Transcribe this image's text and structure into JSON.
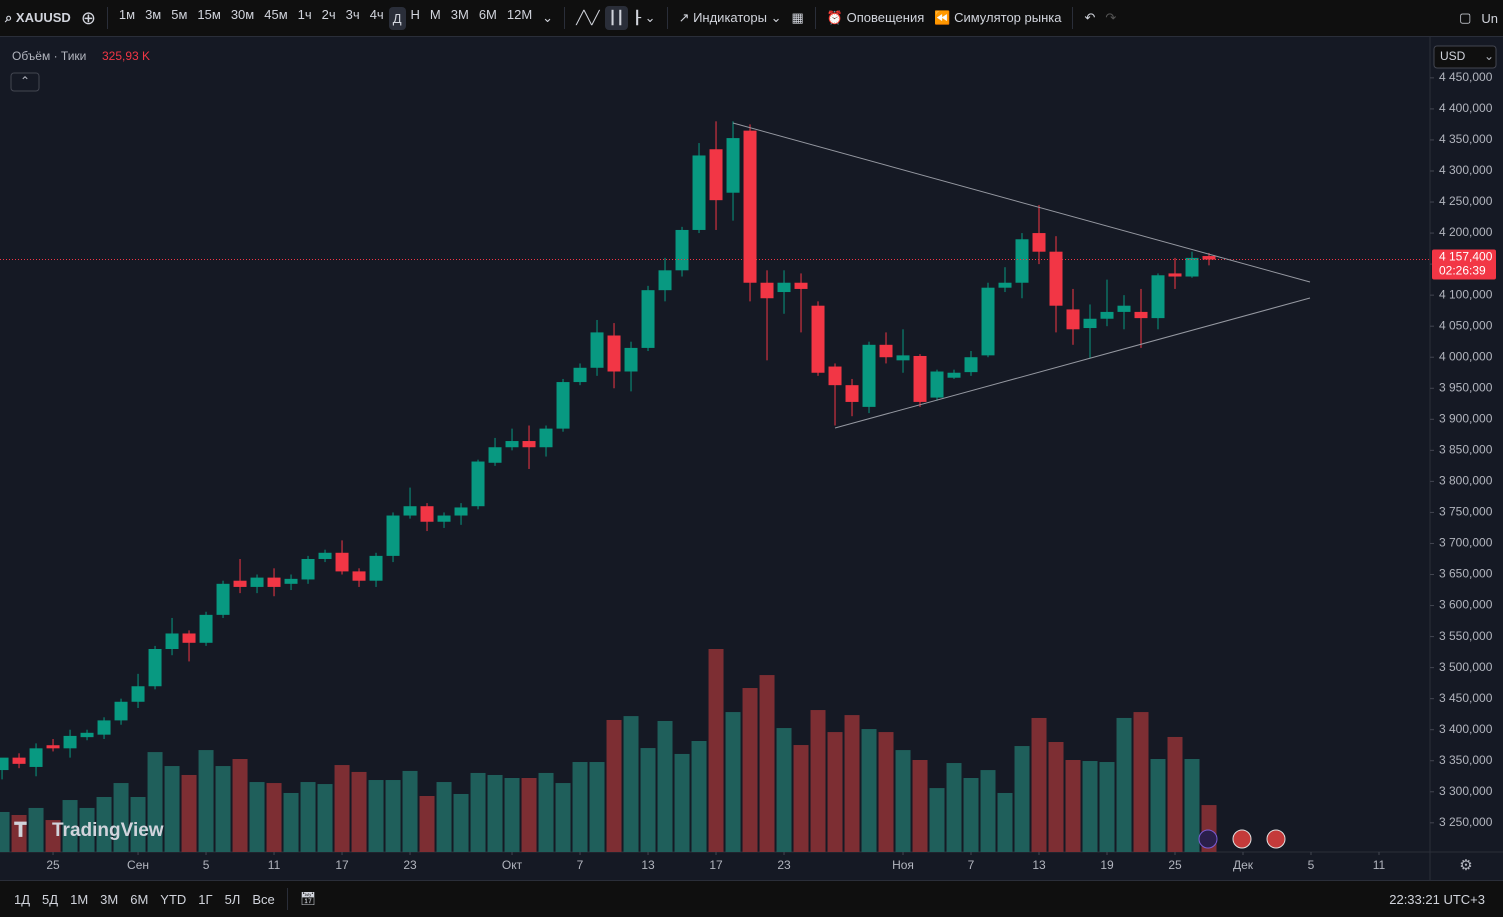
{
  "toolbar": {
    "symbol": "XAUUSD",
    "intervals": [
      "1м",
      "3м",
      "5м",
      "15м",
      "30м",
      "45м",
      "1ч",
      "2ч",
      "3ч",
      "4ч",
      "Д",
      "Н",
      "М",
      "3М",
      "6М",
      "12М"
    ],
    "indicators": "Индикаторы",
    "alerts": "Оповещения",
    "replay": "Симулятор рынка",
    "account": "Un"
  },
  "bottom_bar": {
    "ranges": [
      "1Д",
      "5Д",
      "1М",
      "3М",
      "6М",
      "YTD",
      "1Г",
      "5Л",
      "Все"
    ],
    "clock": "22:33:21 UTC+3"
  },
  "currency": "USD",
  "logo": "TradingView",
  "volume_title": "Объём · Тики",
  "volume_legend": "325,93 K",
  "countdown": "02:26:39",
  "chart_data": {
    "type": "candlestick",
    "x": [
      0,
      1,
      2,
      3,
      4,
      5,
      6,
      7,
      8,
      9,
      10,
      11,
      12,
      13,
      14,
      15,
      16,
      17,
      18,
      19,
      20,
      21,
      22,
      23,
      24,
      25,
      26,
      27,
      28,
      29,
      30,
      31,
      32,
      33,
      34,
      35,
      36,
      37,
      38,
      39,
      40,
      41,
      42,
      43,
      44,
      45,
      46,
      47,
      48,
      49,
      50,
      51,
      52,
      53,
      54,
      55,
      56,
      57,
      58,
      59,
      60,
      61,
      62,
      63,
      64,
      65,
      66,
      67,
      68,
      69,
      70,
      71
    ],
    "open": [
      3335,
      3355,
      3340,
      3375,
      3370,
      3388,
      3392,
      3415,
      3445,
      3470,
      3530,
      3555,
      3540,
      3585,
      3640,
      3630,
      3645,
      3635,
      3642,
      3675,
      3685,
      3655,
      3640,
      3680,
      3745,
      3760,
      3735,
      3745,
      3760,
      3830,
      3855,
      3865,
      3855,
      3885,
      3960,
      3983,
      4035,
      3977,
      4015,
      4108,
      4140,
      4205,
      4335,
      4265,
      4365,
      4120,
      4105,
      4120,
      4083,
      3985,
      3955,
      3920,
      4020,
      3995,
      4002,
      3935,
      3967,
      3976,
      4003,
      4112,
      4120,
      4200,
      4170,
      4077,
      4047,
      4062,
      4073,
      4073,
      4063,
      4135,
      4130,
      4163
    ],
    "high": [
      3350,
      3362,
      3378,
      3385,
      3400,
      3400,
      3420,
      3450,
      3490,
      3535,
      3580,
      3560,
      3590,
      3640,
      3675,
      3650,
      3660,
      3650,
      3680,
      3690,
      3705,
      3660,
      3685,
      3750,
      3790,
      3765,
      3750,
      3765,
      3835,
      3870,
      3885,
      3890,
      3890,
      3965,
      3990,
      4060,
      4055,
      4025,
      4115,
      4160,
      4210,
      4345,
      4380,
      4380,
      4375,
      4140,
      4140,
      4135,
      4090,
      3990,
      3965,
      4025,
      4040,
      4045,
      4005,
      3980,
      3980,
      4010,
      4120,
      4145,
      4200,
      4245,
      4195,
      4110,
      4085,
      4125,
      4100,
      4110,
      4135,
      4160,
      4170,
      4168
    ],
    "low": [
      3320,
      3338,
      3325,
      3365,
      3355,
      3383,
      3385,
      3408,
      3435,
      3465,
      3520,
      3510,
      3535,
      3580,
      3620,
      3620,
      3615,
      3625,
      3635,
      3670,
      3650,
      3630,
      3630,
      3670,
      3740,
      3720,
      3725,
      3730,
      3755,
      3825,
      3850,
      3820,
      3840,
      3880,
      3955,
      3970,
      3950,
      3945,
      4010,
      4090,
      4130,
      4200,
      4205,
      4220,
      4090,
      3995,
      4070,
      4040,
      3970,
      3890,
      3905,
      3910,
      3990,
      3975,
      3920,
      3930,
      3965,
      3970,
      4000,
      4105,
      4095,
      4150,
      4040,
      4020,
      3998,
      4050,
      4045,
      4015,
      4045,
      4110,
      4128,
      4148
    ],
    "close": [
      3355,
      3345,
      3370,
      3370,
      3390,
      3395,
      3415,
      3445,
      3470,
      3530,
      3555,
      3540,
      3585,
      3635,
      3630,
      3645,
      3630,
      3643,
      3675,
      3685,
      3655,
      3640,
      3680,
      3745,
      3760,
      3735,
      3745,
      3758,
      3832,
      3855,
      3865,
      3855,
      3885,
      3960,
      3983,
      4040,
      3977,
      4015,
      4108,
      4140,
      4205,
      4325,
      4253,
      4353,
      4120,
      4095,
      4120,
      4110,
      3975,
      3955,
      3928,
      4020,
      4000,
      4003,
      3928,
      3977,
      3975,
      4000,
      4112,
      4120,
      4190,
      4170,
      4083,
      4045,
      4062,
      4073,
      4083,
      4063,
      4132,
      4130,
      4160,
      4157.4
    ],
    "volume": [
      278,
      257,
      306,
      222,
      361,
      306,
      382,
      479,
      382,
      694,
      597,
      535,
      708,
      597,
      646,
      486,
      479,
      410,
      486,
      472,
      604,
      556,
      500,
      500,
      563,
      389,
      486,
      403,
      549,
      535,
      514,
      514,
      549,
      479,
      625,
      625,
      917,
      944,
      722,
      910,
      681,
      771,
      1410,
      972,
      1139,
      1229,
      861,
      743,
      986,
      833,
      951,
      854,
      833,
      708,
      639,
      444,
      618,
      514,
      569,
      410,
      736,
      931,
      764,
      639,
      632,
      625,
      931,
      972,
      646,
      799,
      646,
      325.93
    ],
    "last_price": {
      "value": 4157.4,
      "label": "4 157,400"
    },
    "xlim": [
      -0.12,
      84
    ],
    "ylim": [
      3203,
      4511
    ],
    "vlim": [
      0,
      5640
    ],
    "xticks": [
      {
        "value": 3,
        "label": "25"
      },
      {
        "value": 8,
        "label": "Сен"
      },
      {
        "value": 12,
        "label": "5"
      },
      {
        "value": 16,
        "label": "11"
      },
      {
        "value": 20,
        "label": "17"
      },
      {
        "value": 24,
        "label": "23"
      },
      {
        "value": 30,
        "label": "Окт"
      },
      {
        "value": 34,
        "label": "7"
      },
      {
        "value": 38,
        "label": "13"
      },
      {
        "value": 42,
        "label": "17"
      },
      {
        "value": 46,
        "label": "23"
      },
      {
        "value": 53,
        "label": "Ноя"
      },
      {
        "value": 57,
        "label": "7"
      },
      {
        "value": 61,
        "label": "13"
      },
      {
        "value": 65,
        "label": "19"
      },
      {
        "value": 69,
        "label": "25"
      },
      {
        "value": 73,
        "label": "Дек"
      },
      {
        "value": 77,
        "label": "5"
      },
      {
        "value": 81,
        "label": "11"
      }
    ],
    "yticks": [
      {
        "value": 3250,
        "label": "3 250,000"
      },
      {
        "value": 3300,
        "label": "3 300,000"
      },
      {
        "value": 3350,
        "label": "3 350,000"
      },
      {
        "value": 3400,
        "label": "3 400,000"
      },
      {
        "value": 3450,
        "label": "3 450,000"
      },
      {
        "value": 3500,
        "label": "3 500,000"
      },
      {
        "value": 3550,
        "label": "3 550,000"
      },
      {
        "value": 3600,
        "label": "3 600,000"
      },
      {
        "value": 3650,
        "label": "3 650,000"
      },
      {
        "value": 3700,
        "label": "3 700,000"
      },
      {
        "value": 3750,
        "label": "3 750,000"
      },
      {
        "value": 3800,
        "label": "3 800,000"
      },
      {
        "value": 3850,
        "label": "3 850,000"
      },
      {
        "value": 3900,
        "label": "3 900,000"
      },
      {
        "value": 3950,
        "label": "3 950,000"
      },
      {
        "value": 4000,
        "label": "4 000,000"
      },
      {
        "value": 4050,
        "label": "4 050,000"
      },
      {
        "value": 4100,
        "label": "4 100,000"
      },
      {
        "value": 4150,
        "label": "4 150,000"
      },
      {
        "value": 4200,
        "label": "4 200,000"
      },
      {
        "value": 4250,
        "label": "4 250,000"
      },
      {
        "value": 4300,
        "label": "4 300,000"
      },
      {
        "value": 4350,
        "label": "4 350,000"
      },
      {
        "value": 4400,
        "label": "4 400,000"
      },
      {
        "value": 4450,
        "label": "4 450,000"
      }
    ],
    "up_color": "#089981",
    "down_color": "#f23645",
    "volume_up_color": "#1f5f5b",
    "volume_down_color": "#7d2e33"
  }
}
